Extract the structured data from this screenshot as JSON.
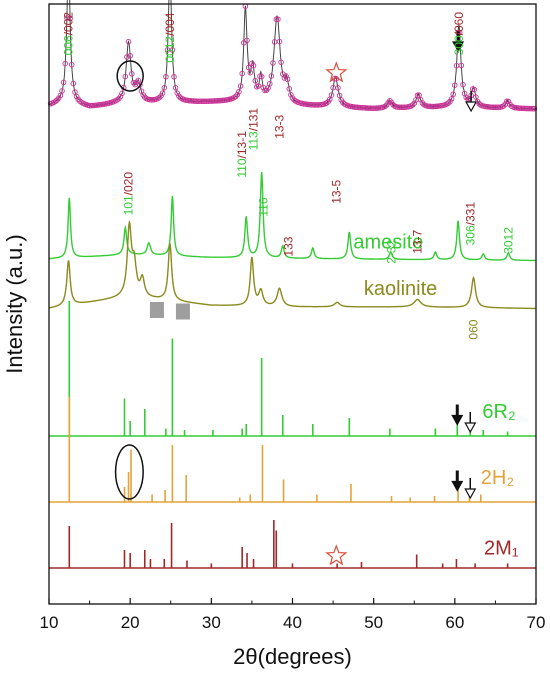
{
  "chart_data": {
    "type": "line",
    "xlabel": "2θ(degrees)",
    "ylabel": "Intensity (a.u.)",
    "xlim": [
      10,
      70
    ],
    "x_ticks": [
      10,
      20,
      30,
      40,
      50,
      60,
      70
    ],
    "series": [
      {
        "name": "",
        "style": "line-markers",
        "color": "#cc3399",
        "baseline": 0.72,
        "noise": 0.012,
        "background": [
          [
            10,
            0.04
          ],
          [
            12,
            0.06
          ],
          [
            15,
            0.03
          ],
          [
            18,
            0.05
          ],
          [
            25,
            0.06
          ],
          [
            35,
            0.07
          ],
          [
            40,
            0.04
          ],
          [
            50,
            0.02
          ],
          [
            60,
            0.03
          ],
          [
            70,
            0.02
          ]
        ],
        "peaks": [
          {
            "x": 12.4,
            "h": 0.93,
            "w": 0.25
          },
          {
            "x": 19.8,
            "h": 0.4,
            "w": 0.35
          },
          {
            "x": 21.0,
            "h": 0.12,
            "w": 0.4
          },
          {
            "x": 24.9,
            "h": 0.85,
            "w": 0.25
          },
          {
            "x": 34.2,
            "h": 0.61,
            "w": 0.25
          },
          {
            "x": 35.1,
            "h": 0.21,
            "w": 0.25
          },
          {
            "x": 36.1,
            "h": 0.15,
            "w": 0.2
          },
          {
            "x": 38.1,
            "h": 0.58,
            "w": 0.45
          },
          {
            "x": 39.3,
            "h": 0.12,
            "w": 0.3
          },
          {
            "x": 45.3,
            "h": 0.2,
            "w": 0.4
          },
          {
            "x": 52.0,
            "h": 0.05,
            "w": 0.35
          },
          {
            "x": 55.5,
            "h": 0.09,
            "w": 0.35
          },
          {
            "x": 60.5,
            "h": 0.55,
            "w": 0.3
          },
          {
            "x": 62.3,
            "h": 0.12,
            "w": 0.3
          },
          {
            "x": 66.5,
            "h": 0.05,
            "w": 0.3
          }
        ]
      },
      {
        "name": "amesite",
        "color": "#33cc33",
        "baseline": 1.72,
        "noise": 0,
        "background": [
          [
            10,
            0.02
          ],
          [
            20,
            0.05
          ],
          [
            30,
            0.03
          ],
          [
            45,
            0.02
          ],
          [
            70,
            0.01
          ]
        ],
        "peaks": [
          {
            "x": 12.5,
            "h": 0.4,
            "w": 0.18
          },
          {
            "x": 19.4,
            "h": 0.18,
            "w": 0.2
          },
          {
            "x": 22.3,
            "h": 0.08,
            "w": 0.25
          },
          {
            "x": 25.2,
            "h": 0.4,
            "w": 0.18
          },
          {
            "x": 34.3,
            "h": 0.27,
            "w": 0.2
          },
          {
            "x": 36.2,
            "h": 0.57,
            "w": 0.2
          },
          {
            "x": 38.8,
            "h": 0.08,
            "w": 0.2
          },
          {
            "x": 42.5,
            "h": 0.07,
            "w": 0.2
          },
          {
            "x": 47.0,
            "h": 0.18,
            "w": 0.2
          },
          {
            "x": 52.1,
            "h": 0.05,
            "w": 0.2
          },
          {
            "x": 57.6,
            "h": 0.05,
            "w": 0.2
          },
          {
            "x": 60.4,
            "h": 0.26,
            "w": 0.2
          },
          {
            "x": 63.5,
            "h": 0.04,
            "w": 0.2
          },
          {
            "x": 66.6,
            "h": 0.05,
            "w": 0.2
          }
        ]
      },
      {
        "name": "kaolinite",
        "color": "#8a8a1e",
        "baseline": 2.05,
        "noise": 0,
        "background": [
          [
            10,
            0.02
          ],
          [
            20,
            0.1
          ],
          [
            25,
            0.07
          ],
          [
            30,
            0.04
          ],
          [
            40,
            0.03
          ],
          [
            55,
            0.03
          ],
          [
            70,
            0.02
          ]
        ],
        "peaks": [
          {
            "x": 12.4,
            "h": 0.3,
            "w": 0.25
          },
          {
            "x": 19.9,
            "h": 0.45,
            "w": 0.3
          },
          {
            "x": 20.5,
            "h": 0.2,
            "w": 0.3
          },
          {
            "x": 21.5,
            "h": 0.12,
            "w": 0.3
          },
          {
            "x": 24.9,
            "h": 0.38,
            "w": 0.25
          },
          {
            "x": 35.0,
            "h": 0.32,
            "w": 0.25
          },
          {
            "x": 36.1,
            "h": 0.1,
            "w": 0.3
          },
          {
            "x": 38.4,
            "h": 0.12,
            "w": 0.35
          },
          {
            "x": 45.5,
            "h": 0.03,
            "w": 0.4
          },
          {
            "x": 55.4,
            "h": 0.05,
            "w": 0.5
          },
          {
            "x": 62.3,
            "h": 0.2,
            "w": 0.3
          }
        ]
      },
      {
        "name": "6R₂",
        "style": "sticks",
        "color": "#33cc33",
        "baseline": 2.88,
        "lines": [
          [
            12.5,
            0.9
          ],
          [
            19.3,
            0.25
          ],
          [
            20.0,
            0.1
          ],
          [
            21.8,
            0.18
          ],
          [
            24.4,
            0.05
          ],
          [
            25.2,
            0.65
          ],
          [
            26.7,
            0.04
          ],
          [
            30.2,
            0.04
          ],
          [
            33.8,
            0.05
          ],
          [
            34.3,
            0.08
          ],
          [
            36.2,
            0.52
          ],
          [
            38.8,
            0.14
          ],
          [
            42.5,
            0.08
          ],
          [
            47.0,
            0.12
          ],
          [
            52.0,
            0.05
          ],
          [
            57.6,
            0.05
          ],
          [
            60.3,
            0.1
          ],
          [
            61.9,
            0.08
          ],
          [
            63.5,
            0.04
          ],
          [
            66.5,
            0.03
          ]
        ]
      },
      {
        "name": "2H₂",
        "style": "sticks",
        "color": "#e3a33a",
        "baseline": 3.32,
        "lines": [
          [
            12.5,
            0.7
          ],
          [
            19.3,
            0.1
          ],
          [
            19.8,
            0.2
          ],
          [
            20.1,
            0.35
          ],
          [
            22.7,
            0.05
          ],
          [
            24.3,
            0.08
          ],
          [
            25.2,
            0.38
          ],
          [
            26.9,
            0.18
          ],
          [
            33.5,
            0.03
          ],
          [
            34.8,
            0.05
          ],
          [
            36.3,
            0.38
          ],
          [
            38.9,
            0.15
          ],
          [
            43.0,
            0.05
          ],
          [
            47.2,
            0.12
          ],
          [
            52.2,
            0.04
          ],
          [
            54.5,
            0.03
          ],
          [
            57.5,
            0.04
          ],
          [
            60.4,
            0.12
          ],
          [
            61.8,
            0.09
          ],
          [
            63.2,
            0.05
          ]
        ]
      },
      {
        "name": "2M₁",
        "style": "sticks",
        "color": "#a0282a",
        "baseline": 3.76,
        "lines": [
          [
            12.5,
            0.28
          ],
          [
            19.3,
            0.12
          ],
          [
            20.0,
            0.1
          ],
          [
            21.8,
            0.12
          ],
          [
            22.5,
            0.06
          ],
          [
            24.2,
            0.06
          ],
          [
            25.1,
            0.3
          ],
          [
            27.0,
            0.05
          ],
          [
            30.0,
            0.03
          ],
          [
            33.8,
            0.14
          ],
          [
            34.4,
            0.1
          ],
          [
            35.2,
            0.06
          ],
          [
            37.7,
            0.32
          ],
          [
            38.0,
            0.25
          ],
          [
            40.0,
            0.03
          ],
          [
            45.5,
            0.03
          ],
          [
            48.5,
            0.04
          ],
          [
            55.3,
            0.09
          ],
          [
            58.5,
            0.03
          ],
          [
            60.2,
            0.06
          ],
          [
            62.5,
            0.03
          ],
          [
            66.5,
            0.03
          ]
        ]
      }
    ],
    "peak_annotations": [
      {
        "x": 12.4,
        "parts": [
          {
            "text": "006",
            "color": "#33cc33"
          },
          {
            "text": "/",
            "color": "#a0282a"
          },
          {
            "text": "002",
            "color": "#a0282a"
          }
        ]
      },
      {
        "x": 19.8,
        "parts": [
          {
            "text": "101",
            "color": "#33cc33"
          },
          {
            "text": "/",
            "color": "#a0282a"
          },
          {
            "text": "020",
            "color": "#a0282a"
          }
        ]
      },
      {
        "x": 24.9,
        "parts": [
          {
            "text": "0012",
            "color": "#33cc33"
          },
          {
            "text": "/",
            "color": "#a0282a"
          },
          {
            "text": "004",
            "color": "#a0282a"
          }
        ]
      },
      {
        "x": 33.8,
        "parts": [
          {
            "text": "110",
            "color": "#33cc33"
          },
          {
            "text": "/",
            "color": "#a0282a"
          },
          {
            "text": "13-1",
            "color": "#a0282a"
          }
        ]
      },
      {
        "x": 35.2,
        "parts": [
          {
            "text": "113",
            "color": "#33cc33"
          },
          {
            "text": "/",
            "color": "#a0282a"
          },
          {
            "text": "131",
            "color": "#a0282a"
          }
        ]
      },
      {
        "x": 36.4,
        "parts": [
          {
            "text": "116",
            "color": "#33cc33"
          }
        ]
      },
      {
        "x": 38.4,
        "parts": [
          {
            "text": "13-3",
            "color": "#a0282a"
          }
        ]
      },
      {
        "x": 39.5,
        "parts": [
          {
            "text": "133",
            "color": "#a0282a"
          }
        ]
      },
      {
        "x": 45.4,
        "parts": [
          {
            "text": "13-5",
            "color": "#a0282a"
          }
        ]
      },
      {
        "x": 52.2,
        "parts": [
          {
            "text": "2-32",
            "color": "#33cc33"
          }
        ]
      },
      {
        "x": 55.4,
        "parts": [
          {
            "text": "13-7",
            "color": "#a0282a"
          }
        ]
      },
      {
        "x": 60.5,
        "parts": [
          {
            "text": "300",
            "color": "#33cc33"
          },
          {
            "text": "/",
            "color": "#a0282a"
          },
          {
            "text": "060",
            "color": "#a0282a"
          }
        ]
      },
      {
        "x": 61.9,
        "parts": [
          {
            "text": "306",
            "color": "#33cc33"
          },
          {
            "text": "/",
            "color": "#a0282a"
          },
          {
            "text": "331",
            "color": "#a0282a"
          }
        ]
      },
      {
        "x": 66.6,
        "parts": [
          {
            "text": "3012",
            "color": "#33cc33"
          }
        ]
      },
      {
        "x": 62.3,
        "parts": [
          {
            "text": "060",
            "color": "#8a8a1e"
          }
        ]
      }
    ],
    "markers": [
      {
        "type": "ellipse",
        "x": 20.0,
        "y": 0.48,
        "rx": 1.6,
        "ry": 0.1
      },
      {
        "type": "ellipse",
        "x": 19.9,
        "y": 3.12,
        "rx": 1.7,
        "ry": 0.18
      },
      {
        "type": "star",
        "x": 45.4,
        "y": 0.46,
        "color": "#d94f3a"
      },
      {
        "type": "star",
        "x": 45.4,
        "y": 3.68,
        "color": "#d94f3a"
      },
      {
        "type": "arrow-filled",
        "x": 60.4,
        "y": 0.24
      },
      {
        "type": "arrow-open",
        "x": 62.0,
        "y": 0.64
      },
      {
        "type": "arrow-filled",
        "x": 60.3,
        "y": 2.73
      },
      {
        "type": "arrow-open",
        "x": 61.9,
        "y": 2.78
      },
      {
        "type": "arrow-filled",
        "x": 60.3,
        "y": 3.17
      },
      {
        "type": "arrow-open",
        "x": 61.9,
        "y": 3.22
      },
      {
        "type": "square",
        "x": 23.3,
        "y": 2.04,
        "color": "#9e9e9e"
      },
      {
        "type": "square",
        "x": 26.5,
        "y": 2.05,
        "color": "#9e9e9e"
      }
    ]
  }
}
